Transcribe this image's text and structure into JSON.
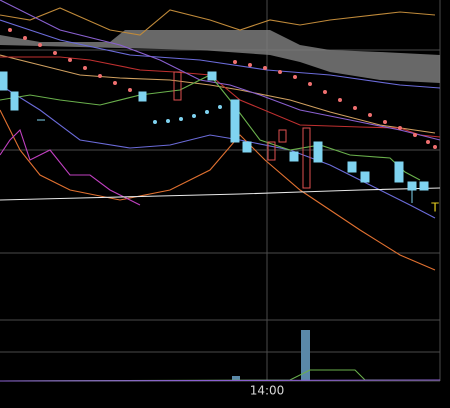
{
  "time_axis": {
    "label": "14:00"
  },
  "marker": "T"
}
